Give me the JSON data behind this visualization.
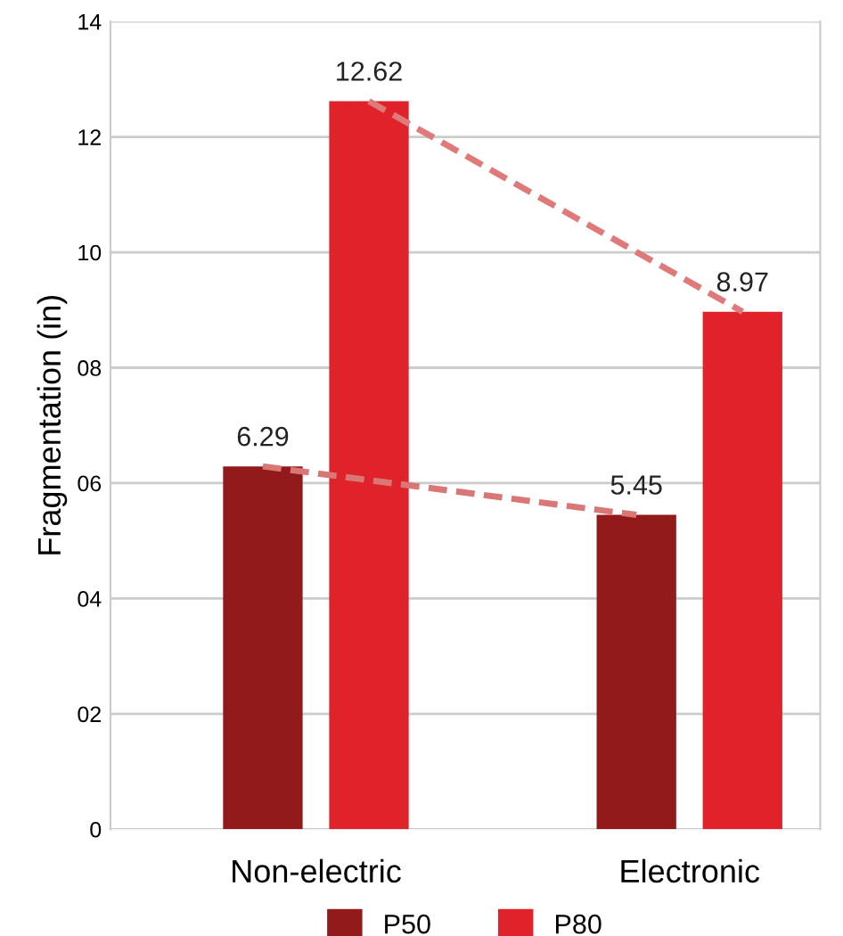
{
  "chart_data": {
    "type": "bar",
    "ylabel": "Fragmentation (in)",
    "categories": [
      "Non-electric",
      "Electronic"
    ],
    "series": [
      {
        "name": "P50",
        "color": "#931a1a",
        "values": [
          6.29,
          5.45
        ],
        "value_labels": [
          "6.29",
          "5.45"
        ]
      },
      {
        "name": "P80",
        "color": "#e0232b",
        "values": [
          12.62,
          8.97
        ],
        "value_labels": [
          "12.62",
          "8.97"
        ]
      },
      {
        "type": "line",
        "color": "#d97777",
        "line_style": "dashed",
        "values": [
          6.29,
          5.45
        ]
      },
      {
        "type": "line",
        "color": "#e07a7a",
        "line_style": "dashed",
        "values": [
          12.62,
          8.97
        ]
      }
    ],
    "ylim": [
      0,
      14
    ],
    "yticks": [
      0,
      {
        "value": 2,
        "label": "02"
      },
      {
        "value": 4,
        "label": "04"
      },
      {
        "value": 6,
        "label": "06"
      },
      {
        "value": 8,
        "label": "08"
      },
      10,
      12,
      14
    ],
    "grid": "y",
    "legend": "bottom"
  }
}
